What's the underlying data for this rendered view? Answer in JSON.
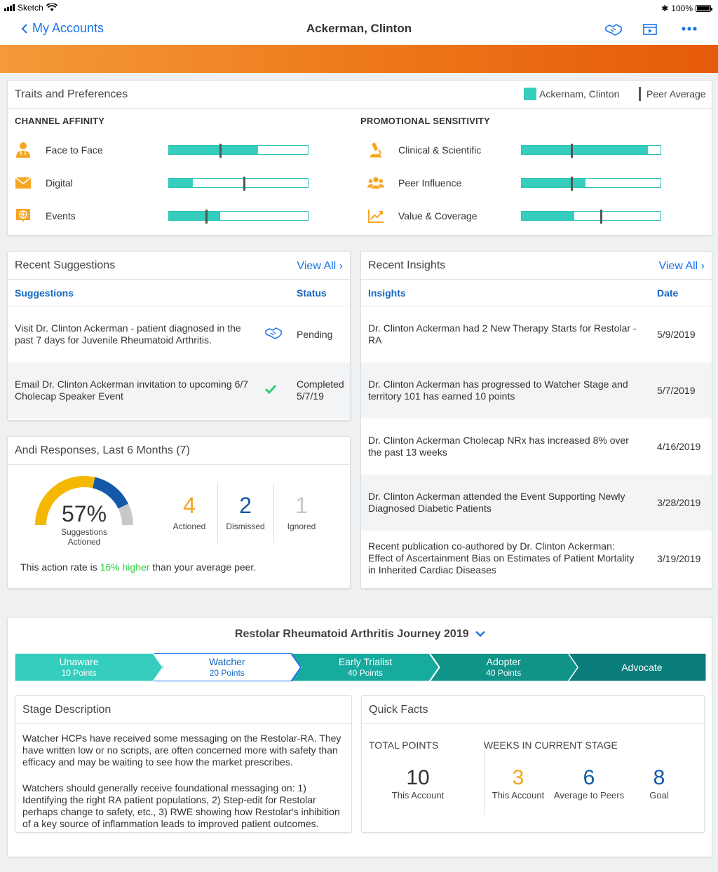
{
  "status": {
    "carrier": "Sketch",
    "battery": "100%"
  },
  "nav": {
    "back_label": "My Accounts",
    "title": "Ackerman, Clinton"
  },
  "traits": {
    "title": "Traits and Preferences",
    "legend_self": "Ackernam, Clinton",
    "legend_peer": "Peer Average",
    "channel_label": "CHANNEL AFFINITY",
    "promo_label": "PROMOTIONAL SENSITIVITY",
    "channel": [
      {
        "label": "Face to Face",
        "icon": "doctor-icon",
        "value": 0.64,
        "peer": 0.37
      },
      {
        "label": "Digital",
        "icon": "envelope-icon",
        "value": 0.17,
        "peer": 0.54
      },
      {
        "label": "Events",
        "icon": "event-badge-icon",
        "value": 0.37,
        "peer": 0.27
      }
    ],
    "promo": [
      {
        "label": "Clinical & Scientific",
        "icon": "microscope-icon",
        "value": 0.91,
        "peer": 0.36
      },
      {
        "label": "Peer Influence",
        "icon": "people-icon",
        "value": 0.46,
        "peer": 0.36
      },
      {
        "label": "Value & Coverage",
        "icon": "trend-chart-icon",
        "value": 0.38,
        "peer": 0.57
      }
    ],
    "colors": {
      "fill": "#35cdbd",
      "peer": "#555555"
    }
  },
  "suggestions": {
    "title": "Recent Suggestions",
    "view_all": "View All",
    "col_suggestions": "Suggestions",
    "col_status": "Status",
    "rows": [
      {
        "text": "Visit Dr. Clinton Ackerman - patient diagnosed in the past 7 days for Juvenile Rheumatoid Arthritis.",
        "icon": "handshake-icon",
        "status": "Pending",
        "status_date": ""
      },
      {
        "text": "Email Dr. Clinton Ackerman invitation to upcoming 6/7 Cholecap Speaker Event",
        "icon": "checkmark-icon",
        "status": "Completed",
        "status_date": "5/7/19"
      }
    ]
  },
  "andi": {
    "title": "Andi Responses, Last 6 Months (7)",
    "percent": "57%",
    "percent_label": "Suggestions Actioned",
    "actioned": {
      "value": "4",
      "label": "Actioned"
    },
    "dismissed": {
      "value": "2",
      "label": "Dismissed"
    },
    "ignored": {
      "value": "1",
      "label": "Ignored"
    },
    "gauge": {
      "actioned": 4,
      "dismissed": 2,
      "ignored": 1
    },
    "footer_pre": "This action rate is ",
    "footer_highlight": "16% higher",
    "footer_post": " than your average peer."
  },
  "insights": {
    "title": "Recent Insights",
    "view_all": "View All",
    "col_insights": "Insights",
    "col_date": "Date",
    "rows": [
      {
        "text": "Dr. Clinton Ackerman had 2 New Therapy Starts for Restolar - RA",
        "date": "5/9/2019"
      },
      {
        "text": "Dr. Clinton Ackerman has progressed to Watcher Stage and territory 101 has earned 10 points",
        "date": "5/7/2019"
      },
      {
        "text": "Dr. Clinton Ackerman Cholecap NRx has increased 8% over the past 13 weeks",
        "date": "4/16/2019"
      },
      {
        "text": "Dr. Clinton Ackerman attended the Event Supporting Newly Diagnosed Diabetic Patients",
        "date": "3/28/2019"
      },
      {
        "text": "Recent publication co-authored by Dr. Clinton Ackerman: Effect of Ascertainment Bias on Estimates of Patient Mortality in Inherited Cardiac Diseases",
        "date": "3/19/2019"
      }
    ]
  },
  "journey": {
    "title": "Restolar Rheumatoid Arthritis Journey 2019",
    "steps": [
      {
        "name": "Unaware",
        "points": "10 Points"
      },
      {
        "name": "Watcher",
        "points": "20 Points"
      },
      {
        "name": "Early Trialist",
        "points": "40 Points"
      },
      {
        "name": "Adopter",
        "points": "40 Points"
      },
      {
        "name": "Advocate",
        "points": ""
      }
    ],
    "stage_title": "Stage Description",
    "stage_p1": "Watcher HCPs have received some messaging on the Restolar-RA. They have written low or no scripts, are often concerned more with safety than efficacy and may be waiting to see how the market prescribes.",
    "stage_p2": "Watchers should generally receive foundational messaging on: 1) Identifying the right RA patient populations, 2) Step-edit for Restolar perhaps change to safety, etc., 3) RWE showing how Restolar's inhibition of a key source of inflammation leads to improved patient outcomes.",
    "facts_title": "Quick Facts",
    "total_points_label": "TOTAL POINTS",
    "weeks_label": "WEEKS IN CURRENT STAGE",
    "total_points": {
      "value": "10",
      "label": "This Account"
    },
    "weeks_account": {
      "value": "3",
      "label": "This Account"
    },
    "weeks_peers": {
      "value": "6",
      "label": "Average to Peers"
    },
    "weeks_goal": {
      "value": "8",
      "label": "Goal"
    }
  }
}
